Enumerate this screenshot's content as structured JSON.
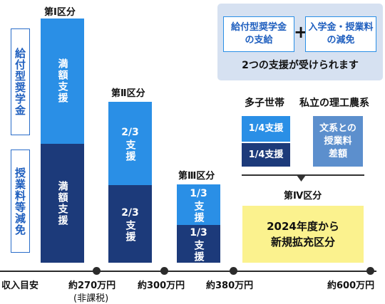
{
  "side_labels": {
    "top": "給付型奨学金",
    "bottom": "授業料等減免"
  },
  "sections": {
    "s1": {
      "heading": "第Ⅰ区分",
      "top_text": "満額支援",
      "bottom_text": "満額支援"
    },
    "s2": {
      "heading": "第Ⅱ区分",
      "top_text_num": "2/3",
      "top_text_jp": "支援",
      "bottom_text_num": "2/3",
      "bottom_text_jp": "支援"
    },
    "s3": {
      "heading": "第Ⅲ区分",
      "top_text_num": "1/3",
      "top_text_jp": "支援",
      "bottom_text_num": "1/3",
      "bottom_text_jp": "支援"
    },
    "s4": {
      "heading": "第Ⅳ区分",
      "line1": "2024年度から",
      "line2": "新規拡充区分"
    }
  },
  "categories": {
    "multi_child": "多子世帯",
    "private_sci": "私立の理工農系",
    "box_a": "1/4支援",
    "box_b": "1/4支援",
    "box_c_line1": "文系との",
    "box_c_line2": "授業料",
    "box_c_line3": "差額"
  },
  "info": {
    "box1_line1": "給付型奨学金",
    "box1_line2": "の支給",
    "plus": "+",
    "box2_line1": "入学金・授業料",
    "box2_line2": "の減免",
    "caption": "2つの支援が受けられます"
  },
  "axis": {
    "start": "収入目安",
    "t1": "約270万円",
    "t1_note": "(非課税)",
    "t2": "約300万円",
    "t3": "約380万円",
    "t4": "約600万円"
  },
  "colors": {
    "light_blue": "#2a8fe6",
    "dark_navy": "#1c3a7a",
    "yellow": "#fbf28e",
    "info_bg": "#d6e1f1"
  }
}
